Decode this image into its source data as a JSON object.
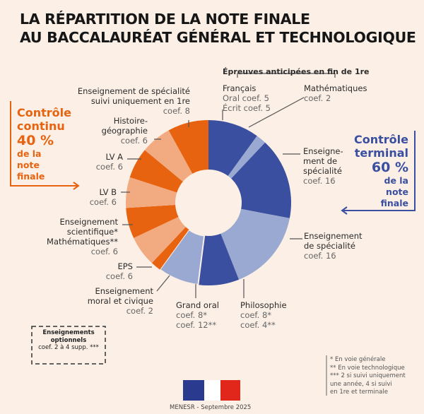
{
  "title": {
    "line1": "LA RÉPARTITION DE LA NOTE FINALE",
    "line2": "AU BACCALAURÉAT GÉNÉRAL ET TECHNOLOGIQUE"
  },
  "left_panel": {
    "l1": "Contrôle",
    "l2": "continu",
    "pct": "40 %",
    "l3": "de la",
    "l4": "note",
    "l5": "finale"
  },
  "right_panel": {
    "l1": "Contrôle",
    "l2": "terminal",
    "pct": "60 %",
    "l3": "de la",
    "l4": "note",
    "l5": "finale"
  },
  "anticipated_header": "Épreuves anticipées en fin de 1re",
  "labels": {
    "francais": {
      "name": "Français",
      "c1": "Oral coef. 5",
      "c2": "Écrit coef. 5"
    },
    "maths": {
      "name": "Mathématiques",
      "c1": "coef. 2"
    },
    "spe1": {
      "n1": "Enseigne-",
      "n2": "ment de",
      "n3": "spécialité",
      "c1": "coef. 16"
    },
    "spe2": {
      "n1": "Enseignement",
      "n2": "de spécialité",
      "c1": "coef. 16"
    },
    "philo": {
      "name": "Philosophie",
      "c1": "coef. 8*",
      "c2": "coef. 4**"
    },
    "grandoral": {
      "name": "Grand oral",
      "c1": "coef. 8*",
      "c2": "coef. 12**"
    },
    "emc": {
      "n1": "Enseignement",
      "n2": "moral et civique",
      "c1": "coef. 2"
    },
    "eps": {
      "name": "EPS",
      "c1": "coef. 6"
    },
    "es": {
      "n1": "Enseignement",
      "n2": "scientifique*",
      "n3": "Mathématiques**",
      "c1": "coef. 6"
    },
    "lvb": {
      "name": "LV B",
      "c1": "coef. 6"
    },
    "lva": {
      "name": "LV A",
      "c1": "coef. 6"
    },
    "hg": {
      "n1": "Histoire-",
      "n2": "géographie",
      "c1": "coef. 6"
    },
    "spe1re": {
      "n1": "Enseignement de spécialité",
      "n2": "suivi uniquement en 1re",
      "c1": "coef. 8"
    }
  },
  "optional": {
    "l1": "Enseignements",
    "l2": "optionnels",
    "l3": "coef. 2 à 4 supp. ***"
  },
  "footnotes": [
    "* En voie générale",
    "** En voie technologique",
    "*** 2 si suivi uniquement",
    "une année, 4 si suivi",
    "en 1re et terminale"
  ],
  "credit": "MENESR - Septembre 2025",
  "logo": "Marianne",
  "colors": {
    "dark_blue": "#3a4fa0",
    "light_blue": "#9aa9d2",
    "orange": "#e8630f",
    "light_orange": "#f2ab80",
    "bg": "#fbefe6"
  },
  "chart_data": {
    "type": "pie",
    "variant": "donut",
    "title": "La répartition de la note finale au baccalauréat général et technologique",
    "categories": [
      "Français (oral + écrit)",
      "Mathématiques (anticipée)",
      "Enseignement de spécialité",
      "Enseignement de spécialité",
      "Philosophie",
      "Grand oral",
      "Enseignement moral et civique",
      "EPS",
      "Enseignement scientifique / Mathématiques",
      "LV B",
      "LV A",
      "Histoire-géographie",
      "Enseignement de spécialité suivi uniquement en 1re"
    ],
    "values": [
      10,
      2,
      16,
      16,
      8,
      8,
      2,
      6,
      6,
      6,
      6,
      6,
      8
    ],
    "groups": [
      "terminal",
      "terminal",
      "terminal",
      "terminal",
      "terminal",
      "terminal",
      "continu",
      "continu",
      "continu",
      "continu",
      "continu",
      "continu",
      "continu"
    ],
    "shades": [
      "dark_blue",
      "light_blue",
      "dark_blue",
      "light_blue",
      "dark_blue",
      "light_blue",
      "orange",
      "light_orange",
      "orange",
      "light_orange",
      "orange",
      "light_orange",
      "orange"
    ],
    "totals": {
      "controle_terminal": 60,
      "controle_continu": 40
    }
  }
}
